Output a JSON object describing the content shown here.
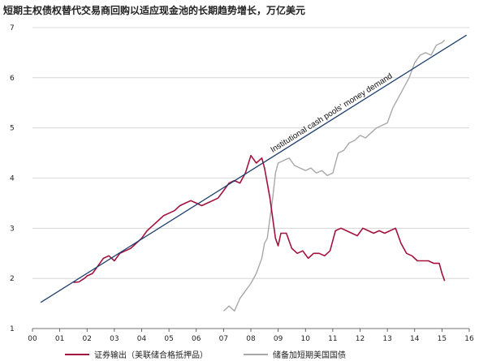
{
  "chart_data": {
    "type": "line",
    "title": "短期主权债权替代交易商回购以适应现金池的长期趋势增长，万亿美元",
    "xlabel": "",
    "ylabel": "",
    "x_ticks": [
      "00",
      "01",
      "02",
      "03",
      "04",
      "05",
      "06",
      "07",
      "08",
      "09",
      "10",
      "11",
      "12",
      "13",
      "14",
      "15",
      "16"
    ],
    "xlim": [
      2000,
      2016
    ],
    "y_ticks": [
      1,
      2,
      3,
      4,
      5,
      6,
      7
    ],
    "ylim": [
      1,
      7
    ],
    "grid": "horizontal",
    "legend_position": "bottom",
    "trend": {
      "label": "Institutional cash pools' money demand",
      "color": "#1f3f6e",
      "x": [
        2000.3,
        2015.9
      ],
      "y": [
        1.52,
        6.85
      ]
    },
    "series": [
      {
        "name": "证券输出（美联储合格抵押品）",
        "color": "#a3123f",
        "x": [
          2001.5,
          2001.7,
          2001.9,
          2002.0,
          2002.2,
          2002.4,
          2002.6,
          2002.8,
          2003.0,
          2003.2,
          2003.4,
          2003.6,
          2003.8,
          2004.0,
          2004.2,
          2004.4,
          2004.6,
          2004.8,
          2005.0,
          2005.2,
          2005.4,
          2005.6,
          2005.8,
          2006.0,
          2006.2,
          2006.4,
          2006.6,
          2006.8,
          2007.0,
          2007.2,
          2007.4,
          2007.6,
          2007.8,
          2008.0,
          2008.2,
          2008.4,
          2008.5,
          2008.6,
          2008.7,
          2008.8,
          2008.9,
          2009.0,
          2009.1,
          2009.3,
          2009.5,
          2009.7,
          2009.9,
          2010.1,
          2010.3,
          2010.5,
          2010.7,
          2010.9,
          2011.1,
          2011.3,
          2011.5,
          2011.7,
          2011.9,
          2012.1,
          2012.3,
          2012.5,
          2012.7,
          2012.9,
          2013.1,
          2013.3,
          2013.5,
          2013.7,
          2013.9,
          2014.1,
          2014.3,
          2014.5,
          2014.7,
          2014.9,
          2015.0,
          2015.1
        ],
        "values": [
          1.92,
          1.93,
          2.0,
          2.05,
          2.1,
          2.25,
          2.4,
          2.45,
          2.35,
          2.5,
          2.55,
          2.6,
          2.7,
          2.8,
          2.95,
          3.05,
          3.15,
          3.25,
          3.3,
          3.35,
          3.45,
          3.5,
          3.55,
          3.5,
          3.45,
          3.5,
          3.55,
          3.6,
          3.75,
          3.9,
          3.95,
          3.9,
          4.1,
          4.45,
          4.3,
          4.4,
          4.2,
          3.9,
          3.6,
          3.2,
          2.8,
          2.65,
          2.9,
          2.9,
          2.6,
          2.5,
          2.55,
          2.4,
          2.5,
          2.5,
          2.45,
          2.55,
          2.95,
          3.0,
          2.95,
          2.9,
          2.85,
          3.0,
          2.95,
          2.9,
          2.95,
          2.9,
          2.95,
          3.0,
          2.7,
          2.5,
          2.45,
          2.35,
          2.35,
          2.35,
          2.3,
          2.3,
          2.1,
          1.95
        ]
      },
      {
        "name": "储备加短期美国国债",
        "color": "#a8a8a8",
        "x": [
          2007.0,
          2007.2,
          2007.4,
          2007.6,
          2007.8,
          2008.0,
          2008.2,
          2008.4,
          2008.5,
          2008.6,
          2008.7,
          2008.8,
          2008.9,
          2009.0,
          2009.2,
          2009.4,
          2009.6,
          2009.8,
          2010.0,
          2010.2,
          2010.4,
          2010.6,
          2010.8,
          2011.0,
          2011.2,
          2011.4,
          2011.6,
          2011.8,
          2012.0,
          2012.2,
          2012.4,
          2012.6,
          2012.8,
          2013.0,
          2013.2,
          2013.4,
          2013.6,
          2013.8,
          2014.0,
          2014.2,
          2014.4,
          2014.6,
          2014.8,
          2015.0,
          2015.1
        ],
        "values": [
          1.35,
          1.45,
          1.35,
          1.6,
          1.75,
          1.9,
          2.1,
          2.4,
          2.7,
          2.8,
          3.2,
          3.6,
          4.1,
          4.3,
          4.35,
          4.4,
          4.25,
          4.2,
          4.15,
          4.2,
          4.1,
          4.15,
          4.05,
          4.1,
          4.5,
          4.55,
          4.7,
          4.75,
          4.85,
          4.8,
          4.9,
          5.0,
          5.05,
          5.1,
          5.4,
          5.6,
          5.8,
          6.0,
          6.3,
          6.45,
          6.5,
          6.45,
          6.65,
          6.7,
          6.75
        ]
      }
    ]
  }
}
